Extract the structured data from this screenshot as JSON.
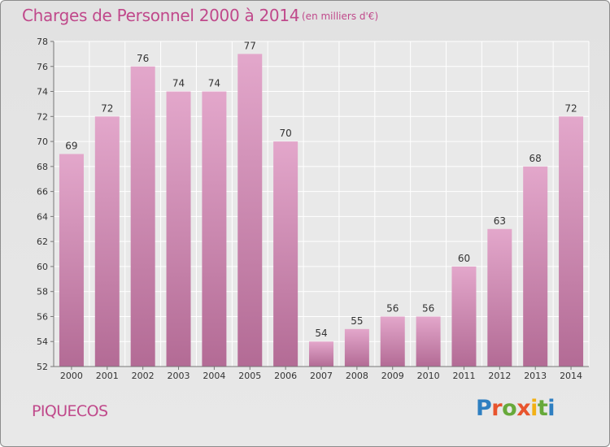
{
  "header": {
    "title": "Charges de Personnel 2000 à 2014",
    "unit_note": "(en milliers d'€)"
  },
  "footer": {
    "commune": "PIQUECOS",
    "logo_text": "Proxiti"
  },
  "colors": {
    "bar_top": "#e3a7cb",
    "bar_bottom": "#b36b95",
    "text_accent": "#c0498b",
    "logo_letters": [
      "#2e7fc1",
      "#e8542d",
      "#67a93a",
      "#e8542d",
      "#f2b015",
      "#67a93a",
      "#2e7fc1"
    ]
  },
  "chart_data": {
    "type": "bar",
    "title": "Charges de Personnel 2000 à 2014",
    "subtitle": "(en milliers d'€)",
    "xlabel": "",
    "ylabel": "",
    "categories": [
      "2000",
      "2001",
      "2002",
      "2003",
      "2004",
      "2005",
      "2006",
      "2007",
      "2008",
      "2009",
      "2010",
      "2011",
      "2012",
      "2013",
      "2014"
    ],
    "values": [
      69,
      72,
      76,
      74,
      74,
      77,
      70,
      54,
      55,
      56,
      56,
      60,
      63,
      68,
      72
    ],
    "ylim": [
      52,
      78
    ],
    "yticks": [
      52,
      54,
      56,
      58,
      60,
      62,
      64,
      66,
      68,
      70,
      72,
      74,
      76,
      78
    ],
    "grid": true,
    "legend": "none"
  }
}
